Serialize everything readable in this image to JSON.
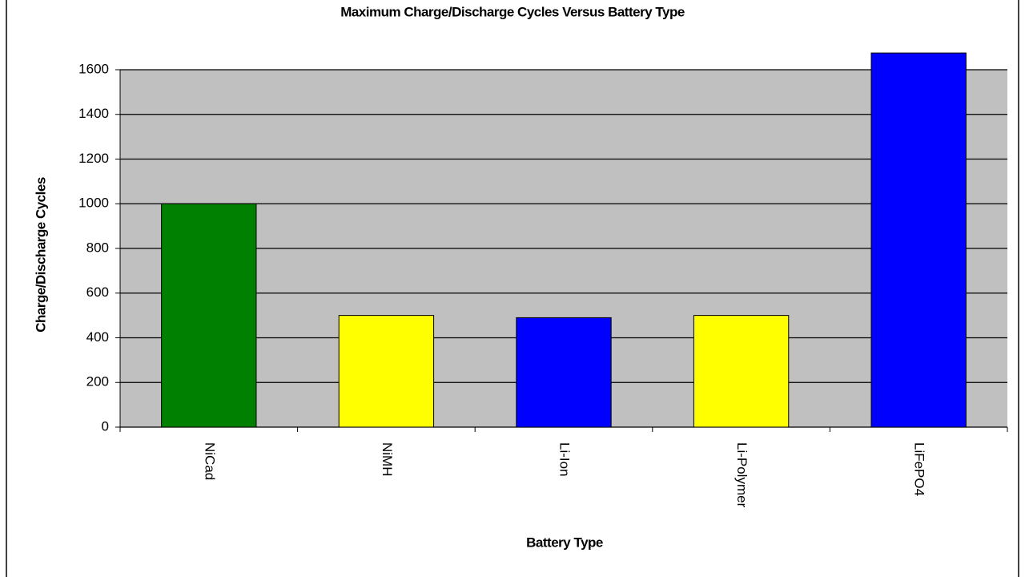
{
  "chart_data": {
    "type": "bar",
    "title": "Maximum Charge/Discharge Cycles Versus Battery Type",
    "x_label": "Battery Type",
    "y_label": "Charge/Discharge Cycles",
    "categories": [
      "NiCad",
      "NiMH",
      "Li-Ion",
      "Li-Polymer",
      "LiFePO4"
    ],
    "values": [
      1000,
      500,
      490,
      500,
      1675
    ],
    "colors": [
      "#008000",
      "#ffff00",
      "#0000ff",
      "#ffff00",
      "#0000ff"
    ],
    "ylim": [
      0,
      1600
    ],
    "yticks": [
      0,
      200,
      400,
      600,
      800,
      1000,
      1200,
      1400,
      1600
    ],
    "grid": true,
    "plot_background": "#c0c0c0"
  }
}
